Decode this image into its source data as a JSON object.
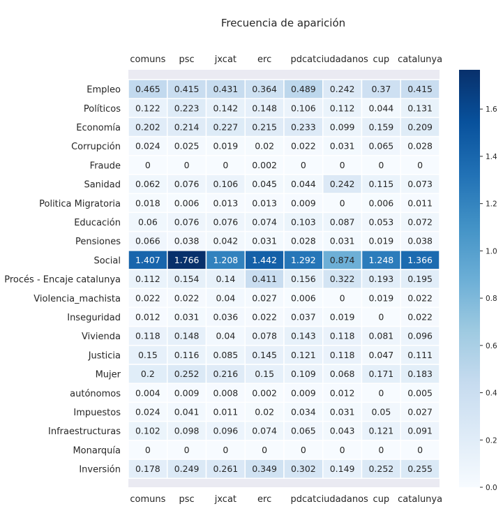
{
  "chart_data": {
    "type": "heatmap",
    "title": "Frecuencia de aparición",
    "columns": [
      "comuns",
      "psc",
      "jxcat",
      "erc",
      "pdcat",
      "ciudadanos",
      "cup",
      "catalunya"
    ],
    "rows": [
      "Empleo",
      "Políticos",
      "Economía",
      "Corrupción",
      "Fraude",
      "Sanidad",
      "Politica Migratoria",
      "Educación",
      "Pensiones",
      "Social",
      "Procés - Encaje catalunya",
      "Violencia_machista",
      "Inseguridad",
      "Vivienda",
      "Justicia",
      "Mujer",
      "autónomos",
      "Impuestos",
      "Infraestructuras",
      "Monarquía",
      "Inversión"
    ],
    "values": [
      [
        "0.465",
        "0.415",
        "0.431",
        "0.364",
        "0.489",
        "0.242",
        "0.37",
        "0.415"
      ],
      [
        "0.122",
        "0.223",
        "0.142",
        "0.148",
        "0.106",
        "0.112",
        "0.044",
        "0.131"
      ],
      [
        "0.202",
        "0.214",
        "0.227",
        "0.215",
        "0.233",
        "0.099",
        "0.159",
        "0.209"
      ],
      [
        "0.024",
        "0.025",
        "0.019",
        "0.02",
        "0.022",
        "0.031",
        "0.065",
        "0.028"
      ],
      [
        "0",
        "0",
        "0",
        "0.002",
        "0",
        "0",
        "0",
        "0"
      ],
      [
        "0.062",
        "0.076",
        "0.106",
        "0.045",
        "0.044",
        "0.242",
        "0.115",
        "0.073"
      ],
      [
        "0.018",
        "0.006",
        "0.013",
        "0.013",
        "0.009",
        "0",
        "0.006",
        "0.011"
      ],
      [
        "0.06",
        "0.076",
        "0.076",
        "0.074",
        "0.103",
        "0.087",
        "0.053",
        "0.072"
      ],
      [
        "0.066",
        "0.038",
        "0.042",
        "0.031",
        "0.028",
        "0.031",
        "0.019",
        "0.038"
      ],
      [
        "1.407",
        "1.766",
        "1.208",
        "1.442",
        "1.292",
        "0.874",
        "1.248",
        "1.366"
      ],
      [
        "0.112",
        "0.154",
        "0.14",
        "0.411",
        "0.156",
        "0.322",
        "0.193",
        "0.195"
      ],
      [
        "0.022",
        "0.022",
        "0.04",
        "0.027",
        "0.006",
        "0",
        "0.019",
        "0.022"
      ],
      [
        "0.012",
        "0.031",
        "0.036",
        "0.022",
        "0.037",
        "0.019",
        "0",
        "0.022"
      ],
      [
        "0.118",
        "0.148",
        "0.04",
        "0.078",
        "0.143",
        "0.118",
        "0.081",
        "0.096"
      ],
      [
        "0.15",
        "0.116",
        "0.085",
        "0.145",
        "0.121",
        "0.118",
        "0.047",
        "0.111"
      ],
      [
        "0.2",
        "0.252",
        "0.216",
        "0.15",
        "0.109",
        "0.068",
        "0.171",
        "0.183"
      ],
      [
        "0.004",
        "0.009",
        "0.008",
        "0.002",
        "0.009",
        "0.012",
        "0",
        "0.005"
      ],
      [
        "0.024",
        "0.041",
        "0.011",
        "0.02",
        "0.034",
        "0.031",
        "0.05",
        "0.027"
      ],
      [
        "0.102",
        "0.098",
        "0.096",
        "0.074",
        "0.065",
        "0.043",
        "0.121",
        "0.091"
      ],
      [
        "0",
        "0",
        "0",
        "0",
        "0",
        "0",
        "0",
        "0"
      ],
      [
        "0.178",
        "0.249",
        "0.261",
        "0.349",
        "0.302",
        "0.149",
        "0.252",
        "0.255"
      ]
    ],
    "colorbar": {
      "colormap": "Blues",
      "range": [
        0,
        1.766
      ],
      "ticks": [
        "0.0",
        "0.2",
        "0.4",
        "0.6",
        "0.8",
        "1.0",
        "1.2",
        "1.4",
        "1.6"
      ]
    },
    "x_tick_labels_top_and_bottom": true,
    "legend": "colorbar right",
    "grid": false
  }
}
